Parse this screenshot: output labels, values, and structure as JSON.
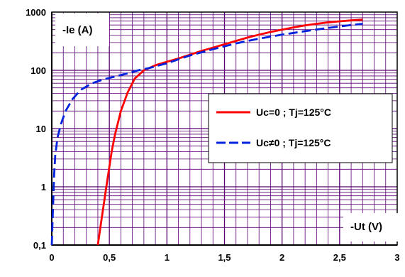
{
  "chart_data": {
    "type": "line",
    "x_scale": "linear",
    "y_scale": "log",
    "xlim": [
      0,
      3
    ],
    "ylim": [
      0.1,
      1000
    ],
    "x_ticks": [
      "0",
      "0,5",
      "1",
      "1,5",
      "2",
      "2,5",
      "3"
    ],
    "y_ticks": [
      "0,1",
      "1",
      "10",
      "100",
      "1000"
    ],
    "ylabel": "-Ie (A)",
    "xlabel": "-Ut (V)",
    "grid": true,
    "legend_position": "center-right",
    "colors": {
      "grid": "#5a0070",
      "axes": "#000000"
    },
    "series": [
      {
        "name": "Uc=0 ; Tj=125°C",
        "color": "#ff0000",
        "dash": "solid",
        "x": [
          0.4,
          0.44,
          0.48,
          0.52,
          0.55,
          0.6,
          0.66,
          0.72,
          0.8,
          0.9,
          1.0,
          1.1,
          1.2,
          1.3,
          1.4,
          1.5,
          1.6,
          1.7,
          1.8,
          1.9,
          2.0,
          2.1,
          2.2,
          2.3,
          2.4,
          2.5,
          2.6,
          2.7
        ],
        "y": [
          0.1,
          0.35,
          1.2,
          4,
          8,
          20,
          42,
          72,
          100,
          122,
          140,
          160,
          185,
          215,
          245,
          280,
          320,
          365,
          410,
          455,
          500,
          545,
          590,
          630,
          665,
          695,
          720,
          740
        ]
      },
      {
        "name": "Uc≠0 ; Tj=125°C",
        "color": "#0022dd",
        "dash": "dashed",
        "x": [
          0.0,
          0.01,
          0.02,
          0.03,
          0.05,
          0.08,
          0.12,
          0.18,
          0.25,
          0.35,
          0.45,
          0.55,
          0.65,
          0.75,
          0.85,
          1.0,
          1.2,
          1.4,
          1.6,
          1.8,
          2.0,
          2.2,
          2.4,
          2.6,
          2.7
        ],
        "y": [
          0.1,
          0.4,
          1.5,
          3.5,
          7,
          12,
          20,
          32,
          46,
          60,
          70,
          78,
          88,
          100,
          110,
          132,
          180,
          230,
          290,
          350,
          410,
          470,
          535,
          600,
          630
        ]
      }
    ]
  }
}
